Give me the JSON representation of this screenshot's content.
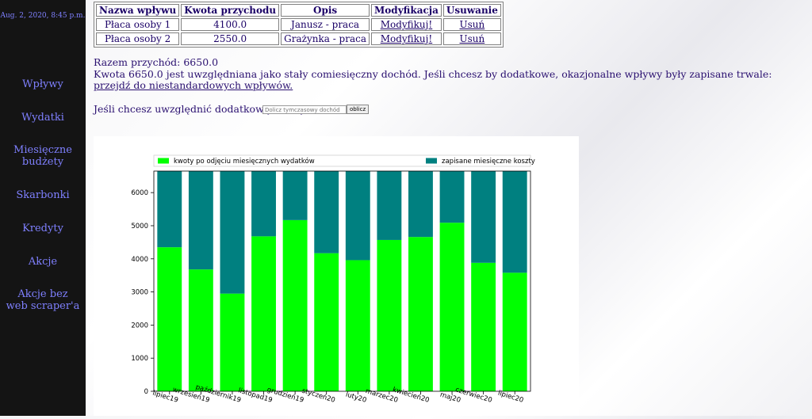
{
  "sidebar": {
    "datetime": "Aug. 2, 2020, 8:45 p.m.",
    "items": [
      {
        "label": [
          "Wpływy"
        ]
      },
      {
        "label": [
          "Wydatki"
        ]
      },
      {
        "label": [
          "Miesięczne",
          "budżety"
        ]
      },
      {
        "label": [
          "Skarbonki"
        ]
      },
      {
        "label": [
          "Kredyty"
        ]
      },
      {
        "label": [
          "Akcje"
        ]
      },
      {
        "label": [
          "Akcje bez",
          "web scraper'a"
        ]
      }
    ]
  },
  "table": {
    "headers": [
      "Nazwa wpływu",
      "Kwota przychodu",
      "Opis",
      "Modyfikacja",
      "Usuwanie"
    ],
    "rows": [
      {
        "name": "Płaca osoby 1",
        "amount": "4100.0",
        "desc": "Janusz - praca",
        "modify": "Modyfikuj!",
        "delete": "Usuń"
      },
      {
        "name": "Płaca osoby 2",
        "amount": "2550.0",
        "desc": "Grażynka - praca",
        "modify": "Modyfikuj!",
        "delete": "Usuń"
      }
    ]
  },
  "summary": {
    "total": "Razem przychód: 6650.0",
    "info": "Kwota 6650.0 jest uwzględniana jako stały comiesięczny dochód. Jeśli chcesz by dodatkowe, okazjonalne wpływy były zapisane trwale:",
    "link": "przejdź do niestandardowych wpływów.",
    "extra_label": "Jeśli chcesz uwzględnić dodatkową kwotę:",
    "extra_placeholder": "Dolicz tymczasowy dochód",
    "button": "oblicz"
  },
  "colors": {
    "remaining": "#00ff00",
    "costs": "#008080",
    "nav": "#7f80ff"
  },
  "chart_data": {
    "type": "bar",
    "stacked": true,
    "categories": [
      "lipiec19",
      "wrzesień19",
      "październik19",
      "listopad19",
      "grudzień19",
      "styczeń20",
      "luty20",
      "marzec20",
      "kwiecień20",
      "maj20",
      "czerwiec20",
      "lipiec20"
    ],
    "series": [
      {
        "name": "kwoty po odjęciu miesięcznych wydatków",
        "color": "#00ff00",
        "values": [
          4350,
          3680,
          2950,
          4680,
          5170,
          4170,
          3960,
          4570,
          4660,
          5090,
          3880,
          3580
        ]
      },
      {
        "name": "zapisane miesięczne koszty",
        "color": "#008080",
        "values": [
          2300,
          2970,
          3700,
          1970,
          1480,
          2480,
          2690,
          2080,
          1990,
          1560,
          2770,
          3070
        ]
      }
    ],
    "yticks": [
      0,
      1000,
      2000,
      3000,
      4000,
      5000,
      6000
    ],
    "ylim": [
      0,
      6650
    ],
    "legend": "top, two columns",
    "grid": false
  }
}
